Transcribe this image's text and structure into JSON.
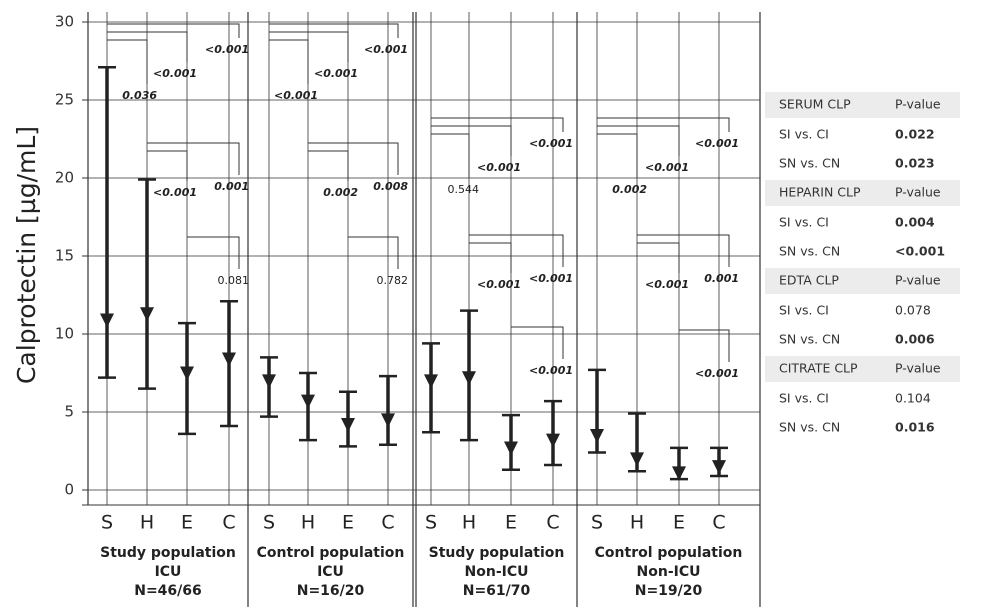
{
  "chart_data": {
    "type": "range",
    "ylabel": "Calprotectin [µg/mL]",
    "ylim": [
      0,
      30
    ],
    "yticks": [
      0,
      5,
      10,
      15,
      20,
      25,
      30
    ],
    "grid": true,
    "color": "#222222",
    "panels": [
      {
        "label": [
          "Study population",
          "ICU",
          "N=46/66"
        ],
        "categories": [
          "S",
          "H",
          "E",
          "C"
        ],
        "low": [
          7.2,
          6.5,
          3.6,
          4.1
        ],
        "median": [
          10.8,
          11.2,
          7.4,
          8.3
        ],
        "high": [
          27.1,
          19.9,
          10.7,
          12.1
        ],
        "p_values": [
          "0.036",
          "<0.001",
          "<0.001",
          "<0.001",
          "0.001",
          "0.081"
        ]
      },
      {
        "label": [
          "Control population",
          "ICU",
          "N=16/20"
        ],
        "categories": [
          "S",
          "H",
          "E",
          "C"
        ],
        "low": [
          4.7,
          3.2,
          2.8,
          2.9
        ],
        "median": [
          6.9,
          5.6,
          4.1,
          4.4
        ],
        "high": [
          8.5,
          7.5,
          6.3,
          7.3
        ],
        "p_values": [
          "<0.001",
          "<0.001",
          "<0.001",
          "0.002",
          "0.008",
          "0.782"
        ]
      },
      {
        "label": [
          "Study population",
          "Non-ICU",
          "N=61/70"
        ],
        "categories": [
          "S",
          "H",
          "E",
          "C"
        ],
        "low": [
          3.7,
          3.2,
          1.3,
          1.6
        ],
        "median": [
          6.9,
          7.1,
          2.6,
          3.1
        ],
        "high": [
          9.4,
          11.5,
          4.8,
          5.7
        ],
        "p_values": [
          "0.544",
          "<0.001",
          "<0.001",
          "<0.001",
          "<0.001",
          "<0.001"
        ]
      },
      {
        "label": [
          "Control population",
          "Non-ICU",
          "N=19/20"
        ],
        "categories": [
          "S",
          "H",
          "E",
          "C"
        ],
        "low": [
          2.4,
          1.2,
          0.7,
          0.9
        ],
        "median": [
          3.4,
          1.9,
          1.0,
          1.4
        ],
        "high": [
          7.7,
          4.9,
          2.7,
          2.7
        ],
        "p_values": [
          "0.002",
          "<0.001",
          "<0.001",
          "<0.001",
          "0.001",
          "<0.001"
        ]
      }
    ]
  },
  "table": {
    "groups": [
      {
        "header": [
          "SERUM CLP",
          "P-value"
        ],
        "rows": [
          [
            "SI vs. CI",
            "0.022"
          ],
          [
            "SN vs. CN",
            "0.023"
          ]
        ]
      },
      {
        "header": [
          "HEPARIN CLP",
          "P-value"
        ],
        "rows": [
          [
            "SI vs. CI",
            "0.004"
          ],
          [
            "SN vs. CN",
            "<0.001"
          ]
        ]
      },
      {
        "header": [
          "EDTA CLP",
          "P-value"
        ],
        "rows": [
          [
            "SI vs. CI",
            "0.078"
          ],
          [
            "SN vs. CN",
            "0.006"
          ]
        ]
      },
      {
        "header": [
          "CITRATE CLP",
          "P-value"
        ],
        "rows": [
          [
            "SI vs. CI",
            "0.104"
          ],
          [
            "SN vs. CN",
            "0.016"
          ]
        ]
      }
    ]
  }
}
